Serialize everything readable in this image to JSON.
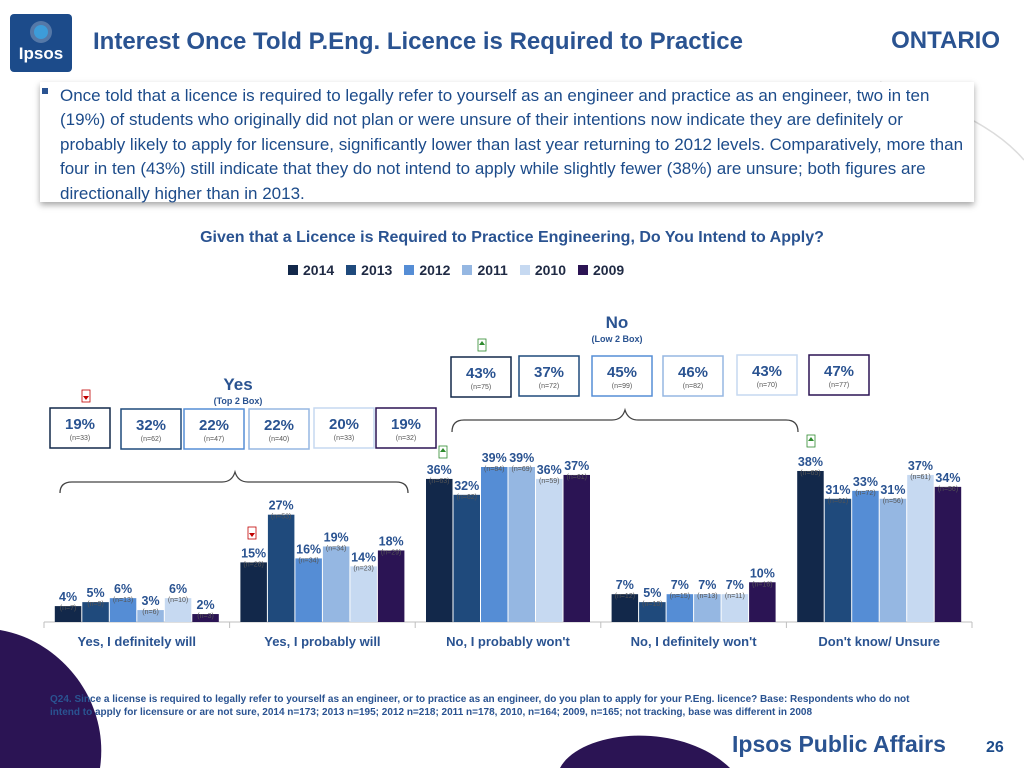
{
  "header": {
    "logo_text": "Ipsos",
    "title": "Interest Once Told P.Eng. Licence is Required to Practice",
    "region": "ONTARIO"
  },
  "bullet": {
    "text": "Once told that a licence is required to legally refer to yourself as an engineer and practice as an engineer, two in ten (19%) of students who originally did not plan or were unsure of their intentions now indicate they are definitely or probably likely to apply for licensure, significantly lower than last year returning to 2012 levels. Comparatively, more than four in ten (43%) still indicate that they do not intend to apply while slightly fewer (38%) are unsure; both figures are directionally higher than in 2013."
  },
  "chart_data": {
    "type": "bar",
    "title": "Given that a Licence is Required to Practice Engineering, Do You Intend to Apply?",
    "legend_position": "top",
    "categories": [
      "Yes, I definitely will",
      "Yes, I probably will",
      "No, I probably won't",
      "No, I definitely won't",
      "Don't know/ Unsure"
    ],
    "series": [
      {
        "name": "2014",
        "color": "#12284a",
        "values": [
          4,
          15,
          36,
          7,
          38
        ],
        "n": [
          "(n=7)",
          "(n=26)",
          "(n=63)",
          "(n=12)",
          "(n=65)"
        ]
      },
      {
        "name": "2013",
        "color": "#1f4a7c",
        "values": [
          5,
          27,
          32,
          5,
          31
        ],
        "n": [
          "(n=9)",
          "(n=53)",
          "(n=62)",
          "(n=10)",
          "(n=61)"
        ]
      },
      {
        "name": "2012",
        "color": "#558dd5",
        "values": [
          6,
          16,
          39,
          7,
          33
        ],
        "n": [
          "(n=13)",
          "(n=34)",
          "(n=84)",
          "(n=15)",
          "(n=72)"
        ]
      },
      {
        "name": "2011",
        "color": "#95b7e2",
        "values": [
          3,
          19,
          39,
          7,
          31
        ],
        "n": [
          "(n=6)",
          "(n=34)",
          "(n=69)",
          "(n=13)",
          "(n=56)"
        ]
      },
      {
        "name": "2010",
        "color": "#c6d9f1",
        "values": [
          6,
          14,
          36,
          7,
          37
        ],
        "n": [
          "(n=10)",
          "(n=23)",
          "(n=59)",
          "(n=11)",
          "(n=61)"
        ]
      },
      {
        "name": "2009",
        "color": "#2b1454",
        "values": [
          2,
          18,
          37,
          10,
          34
        ],
        "n": [
          "(n=3)",
          "(n=29)",
          "(n=61)",
          "(n=16)",
          "(n=56)"
        ]
      }
    ],
    "ylim": [
      0,
      42
    ],
    "summary_groups": [
      {
        "label": "Yes",
        "sublabel": "(Top 2 Box)",
        "boxes": [
          {
            "value": "19%",
            "n": "(n=33)"
          },
          {
            "value": "32%",
            "n": "(n=62)"
          },
          {
            "value": "22%",
            "n": "(n=47)"
          },
          {
            "value": "22%",
            "n": "(n=40)"
          },
          {
            "value": "20%",
            "n": "(n=33)"
          },
          {
            "value": "19%",
            "n": "(n=32)"
          }
        ]
      },
      {
        "label": "No",
        "sublabel": "(Low 2 Box)",
        "boxes": [
          {
            "value": "43%",
            "n": "(n=75)"
          },
          {
            "value": "37%",
            "n": "(n=72)"
          },
          {
            "value": "45%",
            "n": "(n=99)"
          },
          {
            "value": "46%",
            "n": "(n=82)"
          },
          {
            "value": "43%",
            "n": "(n=70)"
          },
          {
            "value": "47%",
            "n": "(n=77)"
          }
        ]
      }
    ]
  },
  "footnote": "Q24. Since a license is required to legally refer to yourself as an engineer, or to practice as an engineer, do you plan to apply for your P.Eng. licence? Base: Respondents who do not intend to apply for licensure or are not sure, 2014 n=173; 2013 n=195; 2012 n=218; 2011 n=178, 2010, n=164; 2009, n=165;  not tracking, base was different in 2008",
  "footer": {
    "brand": "Ipsos Public Affairs",
    "page_number": "26"
  },
  "colors": {
    "title_blue": "#2a5391",
    "down_arrow": "#c00000",
    "up_arrow": "#2e8b2e"
  },
  "icons": [
    "down-arrow-icon",
    "up-arrow-icon"
  ]
}
